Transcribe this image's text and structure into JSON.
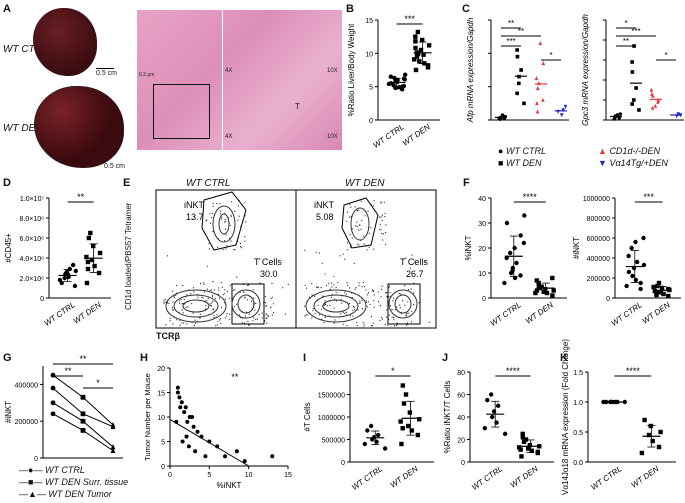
{
  "panels": {
    "A": "A",
    "B": "B",
    "C": "C",
    "D": "D",
    "E": "E",
    "F": "F",
    "G": "G",
    "H": "H",
    "I": "I",
    "J": "J",
    "K": "K"
  },
  "panelA": {
    "label_ctrl": "WT CTRL",
    "label_den": "WT DEN",
    "scale": "0.5 cm",
    "histo_marks": [
      "4X",
      "10X",
      "4X",
      "10X",
      "T"
    ],
    "scale_um": "0.2 μm"
  },
  "panelE": {
    "ylabel": "CD1d loaded/PBS57 Tetramer",
    "xlabel": "TCRβ",
    "left_title": "WT CTRL",
    "right_title": "WT DEN",
    "left_inkt": "iNKT",
    "left_inkt_val": "13.7",
    "left_t": "T Cells",
    "left_t_val": "30.0",
    "right_inkt": "iNKT",
    "right_inkt_val": "5.08",
    "right_t": "T Cells",
    "right_t_val": "26.7"
  },
  "legendC": {
    "items": [
      "WT CTRL",
      "WT DEN",
      "CD1d-/-DEN",
      "Vα14Tg/+DEN"
    ],
    "colors": [
      "#000000",
      "#000000",
      "#e8383f",
      "#2326c6"
    ]
  },
  "legendG": {
    "items": [
      "WT CTRL",
      "WT DEN Surr. tissue",
      "WT DEN Tumor"
    ]
  },
  "chart_data": [
    {
      "id": "B",
      "type": "scatter",
      "ylabel": "%Ratio Liver/Body Weight",
      "categories": [
        "WT CTRL",
        "WT DEN"
      ],
      "ylim": [
        0,
        15
      ],
      "yticks": [
        0,
        5,
        10,
        15
      ],
      "sig": "***",
      "series": [
        {
          "name": "WT CTRL",
          "values": [
            5.1,
            5.4,
            6.0,
            6.3,
            5.8,
            4.9,
            6.5,
            5.2,
            5.7,
            6.1,
            4.6,
            5.5,
            6.8,
            5.0,
            5.9,
            6.2,
            4.8
          ]
        },
        {
          "name": "WT DEN",
          "values": [
            7.5,
            8.2,
            9.8,
            10.5,
            11.2,
            12.0,
            13.2,
            8.8,
            9.5,
            10.1,
            11.8,
            7.9,
            9.1,
            10.8,
            12.5,
            8.5,
            9.9
          ]
        }
      ]
    },
    {
      "id": "C1",
      "type": "scatter",
      "ylabel": "Afp mRNA expression/Gapdh",
      "sigs": [
        "***",
        "**",
        "**",
        "*"
      ],
      "series": [
        {
          "name": "WT CTRL",
          "values": [
            0.1,
            0.15,
            0.2,
            0.05,
            0.3,
            0.1,
            0.2
          ]
        },
        {
          "name": "WT DEN",
          "values": [
            1.0,
            2.2,
            3.0,
            3.8,
            4.2,
            2.6,
            1.6
          ]
        },
        {
          "name": "CD1d-/-DEN",
          "values": [
            0.5,
            1.2,
            1.9,
            2.5,
            3.4,
            4.6,
            1.0,
            2.2
          ]
        },
        {
          "name": "Vα14Tg/+DEN",
          "values": [
            0.3,
            0.6,
            0.8,
            0.5
          ]
        }
      ]
    },
    {
      "id": "C2",
      "type": "scatter",
      "ylabel": "Gpc3 mRNA expression/Gapdh",
      "sigs": [
        "**",
        "***",
        "*",
        "*"
      ],
      "series": [
        {
          "name": "WT CTRL",
          "values": [
            0.1,
            0.2,
            0.3,
            0.15,
            0.25,
            0.05
          ]
        },
        {
          "name": "WT DEN",
          "values": [
            0.5,
            1.0,
            1.6,
            2.4,
            2.9,
            3.7,
            0.8
          ]
        },
        {
          "name": "CD1d-/-DEN",
          "values": [
            0.6,
            0.9,
            1.2,
            1.5,
            1.0,
            0.7,
            1.3
          ]
        },
        {
          "name": "Vα14Tg/+DEN",
          "values": [
            0.2,
            0.3,
            0.25
          ]
        }
      ]
    },
    {
      "id": "D",
      "type": "scatter",
      "ylabel": "#CD45+",
      "categories": [
        "WT CTRL",
        "WT DEN"
      ],
      "ylim": [
        0,
        10000000
      ],
      "yticks": [
        "0",
        "2.0×10⁶",
        "4.0×10⁶",
        "6.0×10⁶",
        "8.0×10⁶",
        "1.0×10⁷"
      ],
      "sig": "**",
      "series": [
        {
          "name": "WT CTRL",
          "values": [
            1200000,
            1800000,
            2100000,
            2400000,
            2600000,
            2900000,
            1500000,
            2000000,
            2300000,
            2700000,
            3300000
          ]
        },
        {
          "name": "WT DEN",
          "values": [
            1500000,
            2500000,
            3200000,
            3800000,
            4500000,
            5200000,
            6000000,
            6500000,
            2900000,
            3600000,
            4100000
          ]
        }
      ]
    },
    {
      "id": "F1",
      "type": "scatter",
      "ylabel": "%iNKT",
      "categories": [
        "WT CTRL",
        "WT DEN"
      ],
      "ylim": [
        0,
        40
      ],
      "yticks": [
        0,
        10,
        20,
        30,
        40
      ],
      "sig": "****",
      "series": [
        {
          "name": "WT CTRL",
          "values": [
            6,
            8,
            10,
            12,
            14,
            16,
            18,
            20,
            22,
            25,
            30,
            33,
            9,
            11
          ]
        },
        {
          "name": "WT DEN",
          "values": [
            1,
            2,
            2.5,
            3,
            3.5,
            4,
            4.5,
            5,
            6,
            7,
            8,
            2,
            3
          ]
        }
      ]
    },
    {
      "id": "F2",
      "type": "scatter",
      "ylabel": "#iNKT",
      "categories": [
        "WT CTRL",
        "WT DEN"
      ],
      "ylim": [
        0,
        1000000
      ],
      "yticks": [
        "0",
        "200000",
        "400000",
        "600000",
        "800000",
        "1000000"
      ],
      "sig": "***",
      "series": [
        {
          "name": "WT CTRL",
          "values": [
            120000,
            180000,
            220000,
            300000,
            360000,
            420000,
            500000,
            560000,
            600000,
            150000,
            260000,
            330000,
            90000
          ]
        },
        {
          "name": "WT DEN",
          "values": [
            20000,
            40000,
            60000,
            80000,
            100000,
            120000,
            150000,
            30000,
            50000,
            70000,
            90000,
            110000
          ]
        }
      ]
    },
    {
      "id": "G",
      "type": "line",
      "ylabel": "#iNKT",
      "ylim": [
        0,
        500000
      ],
      "yticks": [
        "0",
        "200000",
        "400000"
      ],
      "sigs": [
        "**",
        "**",
        "*"
      ],
      "series": [
        {
          "name": "s1",
          "values": [
            450000,
            330000,
            180000
          ]
        },
        {
          "name": "s2",
          "values": [
            380000,
            240000,
            170000
          ]
        },
        {
          "name": "s3",
          "values": [
            300000,
            200000,
            60000
          ]
        },
        {
          "name": "s4",
          "values": [
            240000,
            150000,
            40000
          ]
        }
      ]
    },
    {
      "id": "H",
      "type": "scatter",
      "xlabel": "%iNKT",
      "ylabel": "Tumor Number per Mouse",
      "xlim": [
        0,
        15
      ],
      "ylim": [
        0,
        20
      ],
      "xticks": [
        0,
        5,
        10,
        15
      ],
      "yticks": [
        0,
        5,
        10,
        15,
        20
      ],
      "sig": "**",
      "x": [
        1,
        1.2,
        1.5,
        2,
        2.5,
        3,
        1,
        1.8,
        2.2,
        3.5,
        4,
        5,
        6,
        2.8,
        1.3,
        2.1,
        3.2,
        4.5,
        7,
        8.5,
        9.5,
        13,
        1.6,
        2.4,
        0.8
      ],
      "y": [
        15,
        14,
        13,
        12,
        10,
        8,
        16,
        11,
        9,
        7,
        6,
        5,
        4,
        10,
        12,
        6,
        3,
        2,
        2,
        3,
        1,
        2,
        5,
        4,
        9
      ]
    },
    {
      "id": "I",
      "type": "scatter",
      "ylabel": "#T Cells",
      "categories": [
        "WT CTRL",
        "WT DEN"
      ],
      "ylim": [
        0,
        2000000
      ],
      "yticks": [
        "0",
        "500000",
        "1000000",
        "1500000",
        "2000000"
      ],
      "sig": "*",
      "series": [
        {
          "name": "WT CTRL",
          "values": [
            300000,
            400000,
            450000,
            500000,
            550000,
            600000,
            700000,
            800000
          ]
        },
        {
          "name": "WT DEN",
          "values": [
            400000,
            600000,
            700000,
            800000,
            950000,
            1100000,
            1300000,
            1500000,
            1700000,
            750000,
            900000
          ]
        }
      ]
    },
    {
      "id": "J",
      "type": "scatter",
      "ylabel": "%Ratio iNKT/T Cells",
      "categories": [
        "WT CTRL",
        "WT DEN"
      ],
      "ylim": [
        0,
        80
      ],
      "yticks": [
        0,
        20,
        40,
        60,
        80
      ],
      "sig": "****",
      "series": [
        {
          "name": "WT CTRL",
          "values": [
            25,
            30,
            35,
            40,
            45,
            50,
            55,
            60
          ]
        },
        {
          "name": "WT DEN",
          "values": [
            5,
            8,
            10,
            12,
            14,
            15,
            18,
            20,
            22,
            25,
            11,
            9,
            13
          ]
        }
      ]
    },
    {
      "id": "K",
      "type": "scatter",
      "ylabel": "Vα14Jα18 mRNA expression (Fold Change)",
      "categories": [
        "WT CTRL",
        "WT DEN"
      ],
      "ylim": [
        0,
        1.5
      ],
      "yticks": [
        "0.0",
        "0.5",
        "1.0",
        "1.5"
      ],
      "sig": "****",
      "series": [
        {
          "name": "WT CTRL",
          "values": [
            1,
            1,
            1,
            1,
            1,
            1,
            1,
            1
          ]
        },
        {
          "name": "WT DEN",
          "values": [
            0.15,
            0.25,
            0.35,
            0.45,
            0.5,
            0.6,
            0.7
          ]
        }
      ]
    }
  ]
}
